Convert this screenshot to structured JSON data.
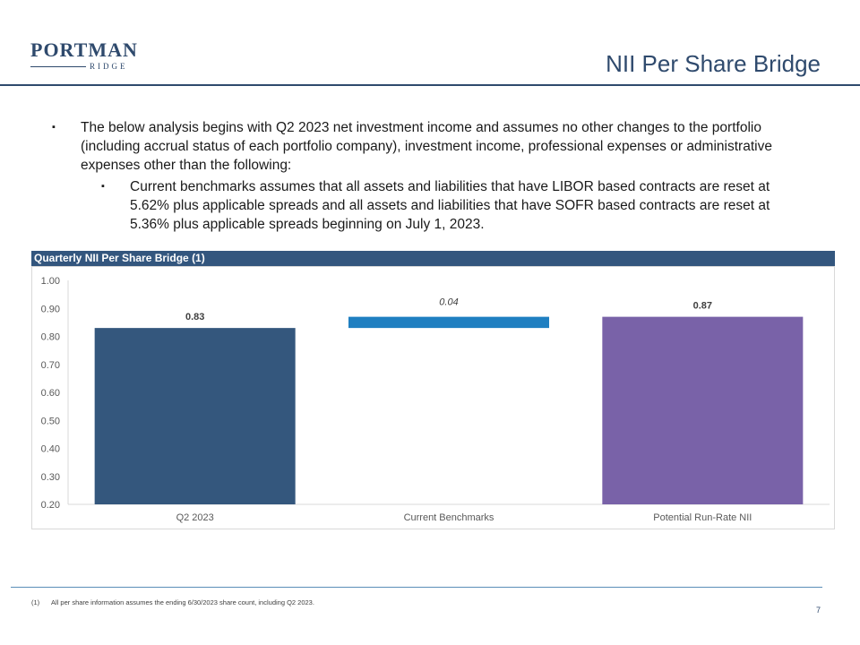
{
  "logo": {
    "main": "PORTMAN",
    "sub": "RIDGE"
  },
  "page_title": "NII Per Share Bridge",
  "bullets": {
    "main": "The below analysis begins with Q2 2023 net investment income and assumes no other changes to the portfolio (including accrual status of each portfolio company), investment income, professional expenses or administrative expenses other than the following:",
    "sub": "Current benchmarks assumes that all assets and liabilities that have LIBOR based contracts are reset at 5.62% plus applicable spreads and all assets and liabilities that have SOFR based contracts are reset at 5.36% plus applicable spreads beginning on July 1, 2023.",
    "marker": "▪"
  },
  "chart_header": "Quarterly NII Per Share Bridge (1)",
  "chart_data": {
    "type": "bar",
    "subtype": "waterfall",
    "title": "",
    "xlabel": "",
    "ylabel": "",
    "ylim": [
      0.2,
      1.0
    ],
    "yticks": [
      "0.20",
      "0.30",
      "0.40",
      "0.50",
      "0.60",
      "0.70",
      "0.80",
      "0.90",
      "1.00"
    ],
    "grid": false,
    "categories": [
      "Q2 2023",
      "Current Benchmarks",
      "Potential Run-Rate NII"
    ],
    "bars": [
      {
        "category": "Q2 2023",
        "base": 0.2,
        "value": 0.83,
        "label": "0.83",
        "color": "#34577d"
      },
      {
        "category": "Current Benchmarks",
        "base": 0.83,
        "value": 0.87,
        "label": "0.04",
        "color": "#1f7fc1",
        "label_italic": true
      },
      {
        "category": "Potential Run-Rate NII",
        "base": 0.2,
        "value": 0.87,
        "label": "0.87",
        "color": "#7962a8"
      }
    ]
  },
  "footnote": {
    "number": "(1)",
    "text": "All per share information assumes the ending 6/30/2023 share count, including Q2 2023."
  },
  "page_number": "7"
}
